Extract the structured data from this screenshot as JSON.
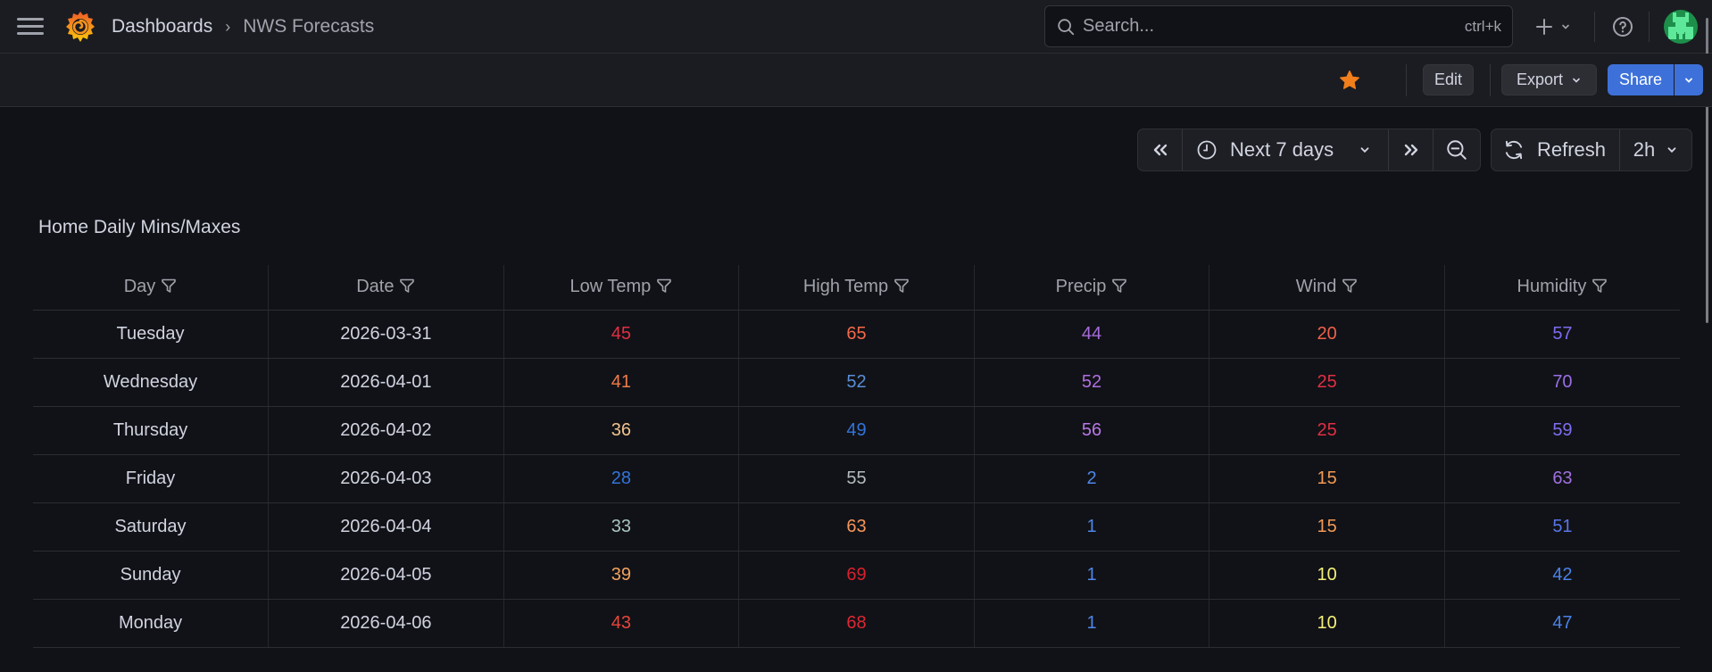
{
  "topbar": {
    "breadcrumb": {
      "parent": "Dashboards",
      "separator": "›",
      "current": "NWS Forecasts"
    },
    "search": {
      "placeholder": "Search...",
      "shortcut": "ctrl+k"
    },
    "icons": {
      "menu": "hamburger-icon",
      "logo": "grafana-logo",
      "add": "plus-icon",
      "help": "help-icon",
      "avatar": "user-avatar"
    }
  },
  "toolbar": {
    "star_color": "#f17f1b",
    "edit_label": "Edit",
    "export_label": "Export",
    "share_label": "Share",
    "share_color": "#3d71d9"
  },
  "timepicker": {
    "range_label": "Next 7 days",
    "refresh_label": "Refresh",
    "refresh_interval": "2h"
  },
  "panel": {
    "title": "Home Daily Mins/Maxes",
    "columns": [
      "Day",
      "Date",
      "Low Temp",
      "High Temp",
      "Precip",
      "Wind",
      "Humidity"
    ],
    "rows": [
      {
        "day": "Tuesday",
        "date": "2026-03-31",
        "low": "45",
        "high": "65",
        "precip": "44",
        "wind": "20",
        "humidity": "57",
        "colors": {
          "low": "#e02f44",
          "high": "#f2694a",
          "precip": "#a66bdb",
          "wind": "#f0604a",
          "humidity": "#7c6cf0"
        }
      },
      {
        "day": "Wednesday",
        "date": "2026-04-01",
        "low": "41",
        "high": "52",
        "precip": "52",
        "wind": "25",
        "humidity": "70",
        "colors": {
          "low": "#f07a4a",
          "high": "#5a8dd6",
          "precip": "#b06fe0",
          "wind": "#e02f44",
          "humidity": "#9a6fe6"
        }
      },
      {
        "day": "Thursday",
        "date": "2026-04-02",
        "low": "36",
        "high": "49",
        "precip": "56",
        "wind": "25",
        "humidity": "59",
        "colors": {
          "low": "#f0c38f",
          "high": "#3274d9",
          "precip": "#b877e6",
          "wind": "#e02f44",
          "humidity": "#7d6ef0"
        }
      },
      {
        "day": "Friday",
        "date": "2026-04-03",
        "low": "28",
        "high": "55",
        "precip": "2",
        "wind": "15",
        "humidity": "63",
        "colors": {
          "low": "#3274d9",
          "high": "#b3bcbc",
          "precip": "#4f86e8",
          "wind": "#f29a55",
          "humidity": "#a070e0"
        }
      },
      {
        "day": "Saturday",
        "date": "2026-04-04",
        "low": "33",
        "high": "63",
        "precip": "1",
        "wind": "15",
        "humidity": "51",
        "colors": {
          "low": "#a9c4c2",
          "high": "#f5955a",
          "precip": "#4f86e8",
          "wind": "#f29a55",
          "humidity": "#5a76e8"
        }
      },
      {
        "day": "Sunday",
        "date": "2026-04-05",
        "low": "39",
        "high": "69",
        "precip": "1",
        "wind": "10",
        "humidity": "42",
        "colors": {
          "low": "#f2a25f",
          "high": "#d8202e",
          "precip": "#4f86e8",
          "wind": "#f5f07a",
          "humidity": "#4a82e6"
        }
      },
      {
        "day": "Monday",
        "date": "2026-04-06",
        "low": "43",
        "high": "68",
        "precip": "1",
        "wind": "10",
        "humidity": "47",
        "colors": {
          "low": "#e8453c",
          "high": "#dd2734",
          "precip": "#4f86e8",
          "wind": "#f5f07a",
          "humidity": "#4a82e6"
        }
      }
    ]
  }
}
